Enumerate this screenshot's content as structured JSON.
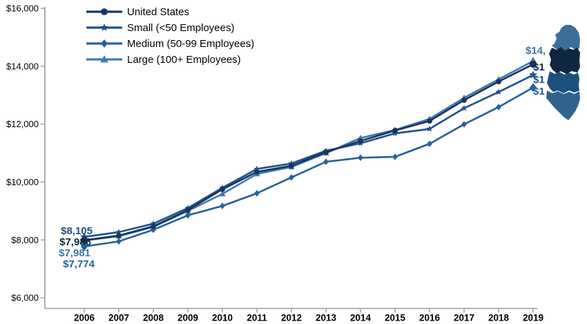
{
  "chart_data": {
    "type": "line",
    "title": "",
    "xlabel": "",
    "ylabel": "",
    "grid": false,
    "legend_position": "top-left-inside",
    "x": [
      2006,
      2007,
      2008,
      2009,
      2010,
      2011,
      2012,
      2013,
      2014,
      2015,
      2016,
      2017,
      2018,
      2019
    ],
    "x_tick_labels": [
      "2006",
      "2007",
      "2008",
      "2009",
      "2010",
      "2011",
      "2012",
      "2013",
      "2014",
      "2015",
      "2016",
      "2017",
      "2018",
      "2019"
    ],
    "y_axis": {
      "min": 6000,
      "max": 16000,
      "step": 2000
    },
    "y_tick_labels": [
      "$6,000",
      "$8,000",
      "$10,000",
      "$12,000",
      "$14,000",
      "$16,000"
    ],
    "series": [
      {
        "name": "United States",
        "marker": "circle",
        "color": "#17365d",
        "values": [
          7988,
          8150,
          8470,
          9030,
          9750,
          10350,
          10560,
          11030,
          11420,
          11780,
          12110,
          12830,
          13470,
          14070
        ]
      },
      {
        "name": "Small (<50 Employees)",
        "marker": "star",
        "color": "#1f538a",
        "values": [
          8105,
          8270,
          8560,
          9100,
          9800,
          10450,
          10640,
          11080,
          11340,
          11680,
          11835,
          12550,
          13110,
          13700
        ]
      },
      {
        "name": "Medium (50-99 Employees)",
        "marker": "diamond",
        "color": "#26619c",
        "values": [
          7774,
          7950,
          8350,
          8850,
          9175,
          9610,
          10160,
          10700,
          10840,
          10870,
          11320,
          11995,
          12590,
          13265
        ]
      },
      {
        "name": "Large (100+ Employees)",
        "marker": "triangle",
        "color": "#4379b3",
        "values": [
          7981,
          8130,
          8450,
          9000,
          9590,
          10280,
          10520,
          11000,
          11520,
          11800,
          12180,
          12910,
          13550,
          14180
        ]
      }
    ],
    "start_labels": [
      {
        "text": "$8,105",
        "color": "#1c4f8c",
        "x": 134,
        "y": 339
      },
      {
        "text": "$7,988",
        "color": "#122a44",
        "x": 132,
        "y": 355
      },
      {
        "text": "$7,981",
        "color": "#3e74ad",
        "x": 131,
        "y": 371
      },
      {
        "text": "$7,774",
        "color": "#26619c",
        "x": 137,
        "y": 387
      }
    ],
    "end_labels": [
      {
        "text": "$14,",
        "color": "#3e74ad",
        "x": 761,
        "y": 78
      },
      {
        "text": "$1",
        "color": "#122a44",
        "x": 772,
        "y": 102
      },
      {
        "text": "$1",
        "color": "#1f538a",
        "x": 772,
        "y": 120
      },
      {
        "text": "$1",
        "color": "#26619c",
        "x": 772,
        "y": 137
      }
    ]
  },
  "decor": {
    "map_fragment_colors": {
      "band_top": "#3c6d9b",
      "band_dark": "#0f2740",
      "band_mid": "#1d4f7c",
      "band_bottom": "#32618e"
    }
  },
  "axis": {
    "line_color": "#9a9a9a"
  }
}
